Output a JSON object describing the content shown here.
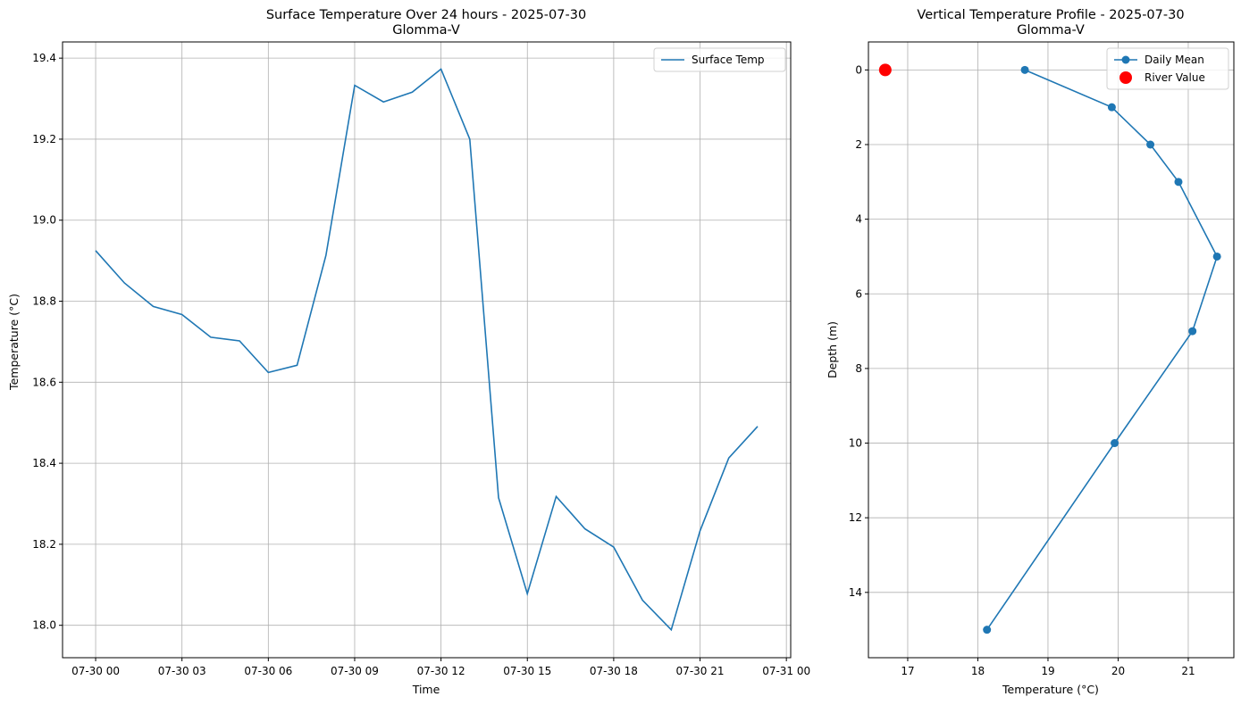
{
  "chart_data": [
    {
      "type": "line",
      "title": "Surface Temperature Over 24 hours - 2025-07-30",
      "subtitle": "Glomma-V",
      "xlabel": "Time",
      "ylabel": "Temperature (°C)",
      "x": [
        "2025-07-30 00:00",
        "2025-07-30 01:00",
        "2025-07-30 02:00",
        "2025-07-30 03:00",
        "2025-07-30 04:00",
        "2025-07-30 05:00",
        "2025-07-30 06:00",
        "2025-07-30 07:00",
        "2025-07-30 08:00",
        "2025-07-30 09:00",
        "2025-07-30 10:00",
        "2025-07-30 11:00",
        "2025-07-30 12:00",
        "2025-07-30 13:00",
        "2025-07-30 14:00",
        "2025-07-30 15:00",
        "2025-07-30 16:00",
        "2025-07-30 17:00",
        "2025-07-30 18:00",
        "2025-07-30 19:00",
        "2025-07-30 20:00",
        "2025-07-30 21:00",
        "2025-07-30 22:00",
        "2025-07-30 23:00"
      ],
      "series": [
        {
          "name": "Surface Temp",
          "color": "#1f77b4",
          "values": [
            18.925,
            18.845,
            18.787,
            18.767,
            18.711,
            18.702,
            18.624,
            18.642,
            18.913,
            19.333,
            19.292,
            19.316,
            19.373,
            19.2,
            18.315,
            18.078,
            18.318,
            18.238,
            18.193,
            18.062,
            17.989,
            18.233,
            18.413,
            18.491
          ]
        }
      ],
      "xlim": [
        "2025-07-29 22:51",
        "2025-07-31 00:09"
      ],
      "ylim": [
        17.92,
        19.44
      ],
      "xticks": [
        {
          "value": "2025-07-30 00:00",
          "label": "07-30 00"
        },
        {
          "value": "2025-07-30 03:00",
          "label": "07-30 03"
        },
        {
          "value": "2025-07-30 06:00",
          "label": "07-30 06"
        },
        {
          "value": "2025-07-30 09:00",
          "label": "07-30 09"
        },
        {
          "value": "2025-07-30 12:00",
          "label": "07-30 12"
        },
        {
          "value": "2025-07-30 15:00",
          "label": "07-30 15"
        },
        {
          "value": "2025-07-30 18:00",
          "label": "07-30 18"
        },
        {
          "value": "2025-07-30 21:00",
          "label": "07-30 21"
        },
        {
          "value": "2025-07-31 00:00",
          "label": "07-31 00"
        }
      ],
      "yticks": [
        {
          "value": 18.0,
          "label": "18.0"
        },
        {
          "value": 18.2,
          "label": "18.2"
        },
        {
          "value": 18.4,
          "label": "18.4"
        },
        {
          "value": 18.6,
          "label": "18.6"
        },
        {
          "value": 18.8,
          "label": "18.8"
        },
        {
          "value": 19.0,
          "label": "19.0"
        },
        {
          "value": 19.2,
          "label": "19.2"
        },
        {
          "value": 19.4,
          "label": "19.4"
        }
      ],
      "grid": true,
      "legend": "top-right"
    },
    {
      "type": "line",
      "title": "Vertical Temperature Profile - 2025-07-30",
      "subtitle": "Glomma-V",
      "xlabel": "Temperature (°C)",
      "ylabel": "Depth (m)",
      "y_inverted": true,
      "series": [
        {
          "name": "Daily Mean",
          "color": "#1f77b4",
          "marker": "circle",
          "x": [
            18.67,
            19.91,
            20.46,
            20.86,
            21.41,
            21.06,
            19.95,
            18.13
          ],
          "y": [
            0,
            1,
            2,
            3,
            5,
            7,
            10,
            15
          ]
        },
        {
          "name": "River Value",
          "color": "#ff0000",
          "marker": "circle",
          "scatter": true,
          "x": [
            16.68
          ],
          "y": [
            0
          ]
        }
      ],
      "xlim": [
        16.44,
        21.65
      ],
      "ylim": [
        15.75,
        -0.75
      ],
      "xticks": [
        {
          "value": 17,
          "label": "17"
        },
        {
          "value": 18,
          "label": "18"
        },
        {
          "value": 19,
          "label": "19"
        },
        {
          "value": 20,
          "label": "20"
        },
        {
          "value": 21,
          "label": "21"
        }
      ],
      "yticks": [
        {
          "value": 0,
          "label": "0"
        },
        {
          "value": 2,
          "label": "2"
        },
        {
          "value": 4,
          "label": "4"
        },
        {
          "value": 6,
          "label": "6"
        },
        {
          "value": 8,
          "label": "8"
        },
        {
          "value": 10,
          "label": "10"
        },
        {
          "value": 12,
          "label": "12"
        },
        {
          "value": 14,
          "label": "14"
        }
      ],
      "grid": true,
      "legend": "top-right"
    }
  ]
}
